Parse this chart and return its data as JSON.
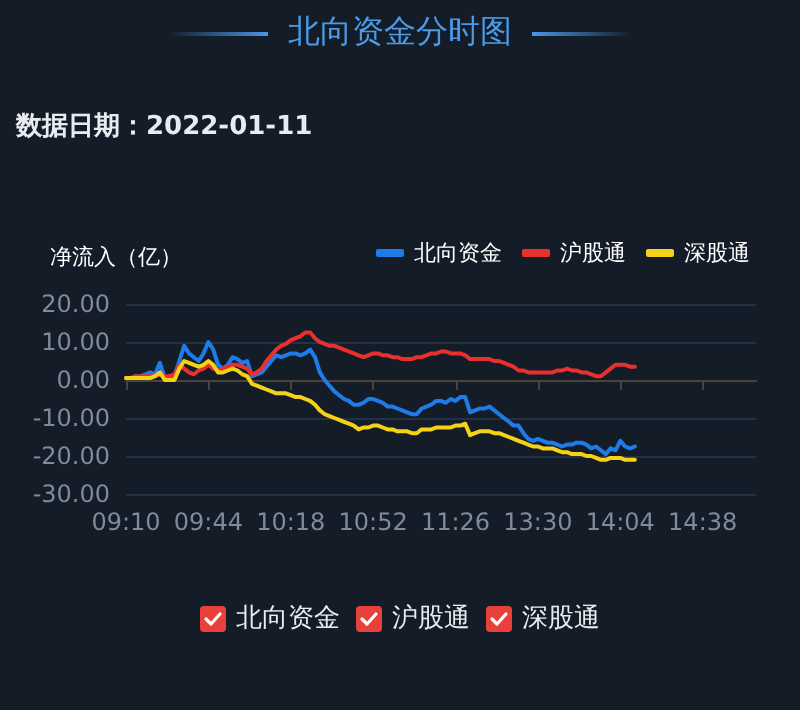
{
  "chart_data": {
    "type": "line",
    "title": "北向资金分时图",
    "subtitle": "数据日期：2022-01-11",
    "ylabel": "净流入（亿）",
    "categories": [
      "09:10",
      null,
      null,
      null,
      null,
      null,
      null,
      null,
      null,
      null,
      null,
      null,
      null,
      null,
      null,
      null,
      null,
      "09:44",
      null,
      null,
      null,
      null,
      null,
      null,
      null,
      null,
      null,
      null,
      null,
      null,
      null,
      null,
      null,
      null,
      "10:18",
      null,
      null,
      null,
      null,
      null,
      null,
      null,
      null,
      null,
      null,
      null,
      null,
      null,
      null,
      null,
      null,
      "10:52",
      null,
      null,
      null,
      null,
      null,
      null,
      null,
      null,
      null,
      null,
      null,
      null,
      null,
      null,
      null,
      null,
      "11:26",
      null,
      null,
      null,
      null,
      null,
      null,
      null,
      null,
      null,
      null,
      null,
      null,
      null,
      null,
      null,
      null,
      "13:30",
      null,
      null,
      null,
      null,
      null,
      null,
      null,
      null,
      null,
      null,
      null,
      null,
      null,
      null,
      null,
      null,
      "14:04",
      null,
      null,
      null,
      null,
      null,
      null,
      null,
      null,
      null,
      null,
      null,
      null,
      null,
      null,
      null,
      null,
      "14:38",
      null,
      null,
      null,
      null,
      null,
      null,
      null,
      null,
      null,
      null,
      null
    ],
    "series": [
      {
        "name": "北向资金",
        "color": "#1e7be8",
        "values": [
          0.5,
          0.5,
          1,
          1,
          1.5,
          2,
          1.5,
          4.5,
          0.5,
          1,
          1,
          5,
          9,
          7,
          6,
          5,
          7,
          10,
          8,
          4,
          3,
          4,
          6,
          5.5,
          4.5,
          5,
          1,
          1.5,
          2,
          3.5,
          5,
          6.5,
          6,
          6.5,
          7,
          7,
          6.5,
          7,
          8,
          6,
          2,
          0,
          -1.5,
          -3,
          -4,
          -5,
          -5.5,
          -6.5,
          -6.5,
          -6,
          -5,
          -5,
          -5.5,
          -6,
          -7,
          -7,
          -7.5,
          -8,
          -8.5,
          -9,
          -9,
          -7.5,
          -7,
          -6.5,
          -5.5,
          -5.5,
          -6,
          -5,
          -5.5,
          -4.5,
          -4.5,
          -8.5,
          -8,
          -7.5,
          -7.5,
          -7,
          -8,
          -9,
          -10,
          -11,
          -12,
          -12,
          -14,
          -15.5,
          -16,
          -15.5,
          -16,
          -16.5,
          -16.5,
          -17,
          -17.5,
          -17,
          -17,
          -16.5,
          -16.5,
          -17,
          -18,
          -17.5,
          -18.5,
          -19.5,
          -18,
          -18.5,
          -16,
          -17.5,
          -18,
          -17.5,
          null,
          null,
          null,
          null,
          null,
          null,
          null,
          null,
          null,
          null,
          null,
          null,
          null,
          null,
          null,
          null,
          null,
          null,
          null,
          null,
          null,
          null,
          null,
          null,
          null
        ]
      },
      {
        "name": "沪股通",
        "color": "#e8312e",
        "values": [
          0.5,
          0.5,
          1,
          1,
          1,
          1,
          1,
          1.5,
          1,
          1,
          1.5,
          4,
          3,
          2,
          1.5,
          2.5,
          3,
          4,
          3,
          2.5,
          3,
          3.5,
          4,
          4,
          3.5,
          3,
          1.5,
          2,
          3,
          5,
          6.5,
          8,
          9,
          9.5,
          10.5,
          11,
          11.5,
          12.5,
          12.5,
          11,
          10,
          9.5,
          9,
          9,
          8.5,
          8,
          7.5,
          7,
          6.5,
          6,
          6.5,
          7,
          7,
          6.5,
          6.5,
          6,
          6,
          5.5,
          5.5,
          5.5,
          6,
          6,
          6.5,
          7,
          7,
          7.5,
          7.5,
          7,
          7,
          7,
          6.5,
          5.5,
          5.5,
          5.5,
          5.5,
          5.5,
          5,
          5,
          4.5,
          4,
          3.5,
          2.5,
          2.5,
          2,
          2,
          2,
          2,
          2,
          2,
          2.5,
          2.5,
          3,
          2.5,
          2.5,
          2,
          2,
          1.5,
          1,
          1,
          2,
          3,
          4,
          4,
          4,
          3.5,
          3.5,
          null,
          null,
          null,
          null,
          null,
          null,
          null,
          null,
          null,
          null,
          null,
          null,
          null,
          null,
          null,
          null,
          null,
          null,
          null,
          null,
          null,
          null,
          null,
          null,
          null
        ]
      },
      {
        "name": "深股通",
        "color": "#f5d218",
        "values": [
          0.5,
          0.5,
          0.5,
          0.5,
          0.5,
          0.5,
          1,
          2,
          0,
          0,
          0,
          3,
          5,
          4.5,
          4,
          3.5,
          4,
          5,
          4,
          2,
          2,
          2.5,
          3,
          2.5,
          1.5,
          1,
          -1,
          -1.5,
          -2,
          -2.5,
          -3,
          -3.5,
          -3.5,
          -3.5,
          -4,
          -4.5,
          -4.5,
          -5,
          -5.5,
          -6.5,
          -8,
          -9,
          -9.5,
          -10,
          -10.5,
          -11,
          -11.5,
          -12,
          -13,
          -12.5,
          -12.5,
          -12,
          -12,
          -12.5,
          -13,
          -13,
          -13.5,
          -13.5,
          -13.5,
          -14,
          -14,
          -13,
          -13,
          -13,
          -12.5,
          -12.5,
          -12.5,
          -12.5,
          -12,
          -12,
          -11.5,
          -14.5,
          -14,
          -13.5,
          -13.5,
          -13.5,
          -14,
          -14,
          -14.5,
          -15,
          -15.5,
          -16,
          -16.5,
          -17,
          -17.5,
          -17.5,
          -18,
          -18,
          -18,
          -18.5,
          -19,
          -19,
          -19.5,
          -19.5,
          -19.5,
          -20,
          -20,
          -20.5,
          -21,
          -21,
          -20.5,
          -20.5,
          -20.5,
          -21,
          -21,
          -21,
          null,
          null,
          null,
          null,
          null,
          null,
          null,
          null,
          null,
          null,
          null,
          null,
          null,
          null,
          null,
          null,
          null,
          null,
          null,
          null,
          null,
          null,
          null,
          null,
          null
        ]
      }
    ],
    "ylim": [
      -30,
      20
    ],
    "yticks": [
      {
        "value": -30,
        "label": "-30.00"
      },
      {
        "value": -20,
        "label": "-20.00"
      },
      {
        "value": -10,
        "label": "-10.00"
      },
      {
        "value": 0,
        "label": "0.00"
      },
      {
        "value": 10,
        "label": "10.00"
      },
      {
        "value": 20,
        "label": "20.00"
      }
    ],
    "grid": "y",
    "legend": "top right"
  }
}
